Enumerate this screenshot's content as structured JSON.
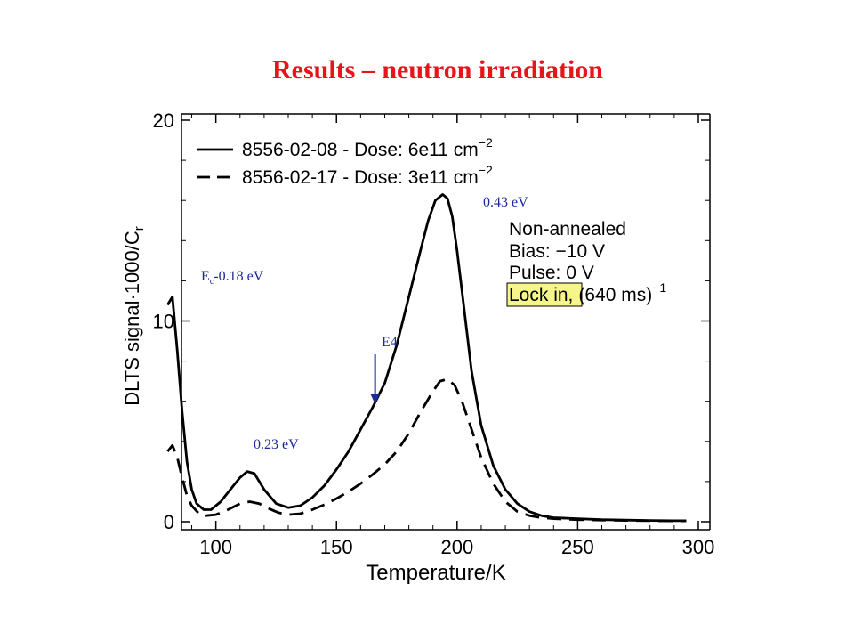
{
  "slide": {
    "title": "Results – neutron irradiation"
  },
  "chart_data": {
    "type": "line",
    "xlabel": "Temperature/K",
    "ylabel": "DLTS signal·1000/C",
    "ylabel_sub": "r",
    "xlim": [
      78,
      300
    ],
    "ylim": [
      0,
      20
    ],
    "xticks": [
      100,
      150,
      200,
      250,
      300
    ],
    "yticks": [
      0,
      10,
      20
    ],
    "grid": false,
    "legend_position": "top-left",
    "series": [
      {
        "name": "8556-02-08 - Dose: 6e11 cm",
        "sup": "−2",
        "style": "solid",
        "x": [
          80,
          82,
          84,
          86,
          88,
          90,
          92,
          95,
          98,
          102,
          106,
          110,
          113,
          116,
          120,
          125,
          130,
          135,
          140,
          145,
          150,
          155,
          160,
          165,
          170,
          175,
          180,
          185,
          188,
          191,
          194,
          196,
          198,
          200,
          203,
          206,
          210,
          215,
          220,
          225,
          230,
          235,
          240,
          250,
          260,
          270,
          280,
          290,
          295
        ],
        "y": [
          10.8,
          11.2,
          8.5,
          5.5,
          3.0,
          1.6,
          0.9,
          0.6,
          0.6,
          1.0,
          1.6,
          2.2,
          2.5,
          2.4,
          1.6,
          0.9,
          0.7,
          0.8,
          1.2,
          1.8,
          2.6,
          3.5,
          4.6,
          5.7,
          6.9,
          8.8,
          11.2,
          13.6,
          15.0,
          16.0,
          16.3,
          16.1,
          15.2,
          13.5,
          10.5,
          7.5,
          4.8,
          2.8,
          1.6,
          0.9,
          0.5,
          0.3,
          0.2,
          0.15,
          0.1,
          0.08,
          0.06,
          0.05,
          0.05
        ]
      },
      {
        "name": "8556-02-17 - Dose: 3e11 cm",
        "sup": "−2",
        "style": "dashed",
        "x": [
          80,
          82,
          84,
          86,
          88,
          90,
          93,
          96,
          100,
          105,
          110,
          114,
          118,
          122,
          126,
          130,
          135,
          140,
          145,
          150,
          155,
          160,
          165,
          170,
          175,
          180,
          185,
          190,
          193,
          196,
          199,
          202,
          206,
          210,
          215,
          220,
          225,
          230,
          235,
          240,
          250,
          260,
          270,
          280,
          290,
          295
        ],
        "y": [
          3.5,
          3.8,
          3.2,
          2.2,
          1.3,
          0.8,
          0.4,
          0.3,
          0.35,
          0.6,
          0.9,
          1.0,
          0.9,
          0.65,
          0.45,
          0.35,
          0.4,
          0.6,
          0.85,
          1.15,
          1.5,
          1.9,
          2.35,
          2.85,
          3.5,
          4.4,
          5.5,
          6.5,
          7.0,
          7.1,
          6.8,
          6.0,
          4.6,
          3.2,
          1.9,
          1.0,
          0.5,
          0.3,
          0.2,
          0.15,
          0.1,
          0.08,
          0.06,
          0.05,
          0.04,
          0.04
        ]
      }
    ],
    "conditions": {
      "line1": "Non-annealed",
      "line2": "Bias: −10 V",
      "line3": "Pulse: 0 V",
      "lock_label": "Lock in,",
      "lock_value": "(640 ms)",
      "lock_sup": "−1",
      "highlight_color": "#f6f58a"
    },
    "annotations": [
      {
        "id": "ec",
        "text": "E",
        "sub": "c",
        "rest": "-0.18 eV",
        "x": 80,
        "y": 11.2
      },
      {
        "id": "p023",
        "text": "0.23 eV",
        "x": 113,
        "y": 2.5
      },
      {
        "id": "e4",
        "text": "E4",
        "x": 166,
        "y": 5.9
      },
      {
        "id": "p043",
        "text": "0.43 eV",
        "x": 194,
        "y": 16.3
      }
    ],
    "colors": {
      "curve": "#000000",
      "annotation": "#1b2a9a",
      "arrow": "#1b2a9a"
    }
  }
}
